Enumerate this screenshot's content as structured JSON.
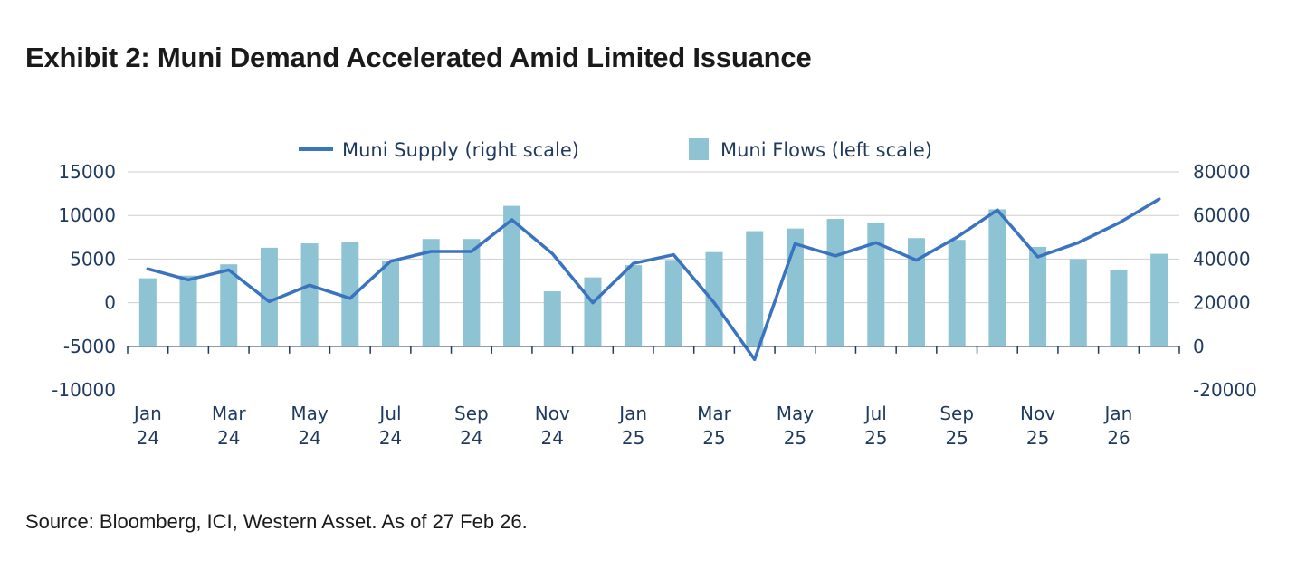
{
  "title": "Exhibit 2: Muni Demand Accelerated Amid Limited Issuance",
  "source": "Source: Bloomberg, ICI, Western Asset. As of 27 Feb 26.",
  "chart_data": {
    "type": "bar+line",
    "legend_placement": "top",
    "grid": true,
    "months": [
      "Jan 24",
      "Feb 24",
      "Mar 24",
      "Apr 24",
      "May 24",
      "Jun 24",
      "Jul 24",
      "Aug 24",
      "Sep 24",
      "Oct 24",
      "Nov 24",
      "Dec 24",
      "Jan 25",
      "Feb 25",
      "Mar 25",
      "Apr 25",
      "May 25",
      "Jun 25",
      "Jul 25",
      "Aug 25",
      "Sep 25",
      "Oct 25",
      "Nov 25",
      "Dec 25",
      "Jan 26",
      "Feb 26"
    ],
    "x_tick_labels": [
      {
        "month": "Jan",
        "year": "24"
      },
      {
        "month": "Mar",
        "year": "24"
      },
      {
        "month": "May",
        "year": "24"
      },
      {
        "month": "Jul",
        "year": "24"
      },
      {
        "month": "Sep",
        "year": "24"
      },
      {
        "month": "Nov",
        "year": "24"
      },
      {
        "month": "Jan",
        "year": "25"
      },
      {
        "month": "Mar",
        "year": "25"
      },
      {
        "month": "May",
        "year": "25"
      },
      {
        "month": "Jul",
        "year": "25"
      },
      {
        "month": "Sep",
        "year": "25"
      },
      {
        "month": "Nov",
        "year": "25"
      },
      {
        "month": "Jan",
        "year": "26"
      }
    ],
    "left_axis": {
      "min": -10000,
      "max": 15000,
      "ticks": [
        "15000",
        "10000",
        "5000",
        "0",
        "-5000",
        "-10000"
      ]
    },
    "right_axis": {
      "min": -20000,
      "max": 80000,
      "ticks": [
        "80000",
        "60000",
        "40000",
        "20000",
        "0",
        "-20000"
      ]
    },
    "series": [
      {
        "name": "Muni Flows (left scale)",
        "type": "bar",
        "axis": "left",
        "color": "#8ec3d4",
        "values": [
          2800,
          3100,
          4400,
          6300,
          6800,
          7000,
          4800,
          7300,
          7300,
          11100,
          1300,
          2900,
          4300,
          4900,
          5800,
          8200,
          8500,
          9600,
          9200,
          7400,
          7200,
          10700,
          6400,
          5000,
          3700,
          5600
        ]
      },
      {
        "name": "Muni Supply (right scale)",
        "type": "line",
        "axis": "right",
        "color": "#3a74c0",
        "values": [
          35500,
          30500,
          35000,
          20500,
          28000,
          22000,
          39000,
          43500,
          43500,
          58000,
          42500,
          20000,
          38000,
          42000,
          20000,
          -6000,
          47000,
          41500,
          47500,
          39500,
          50000,
          62500,
          41000,
          47500,
          56500,
          67500
        ]
      }
    ]
  }
}
